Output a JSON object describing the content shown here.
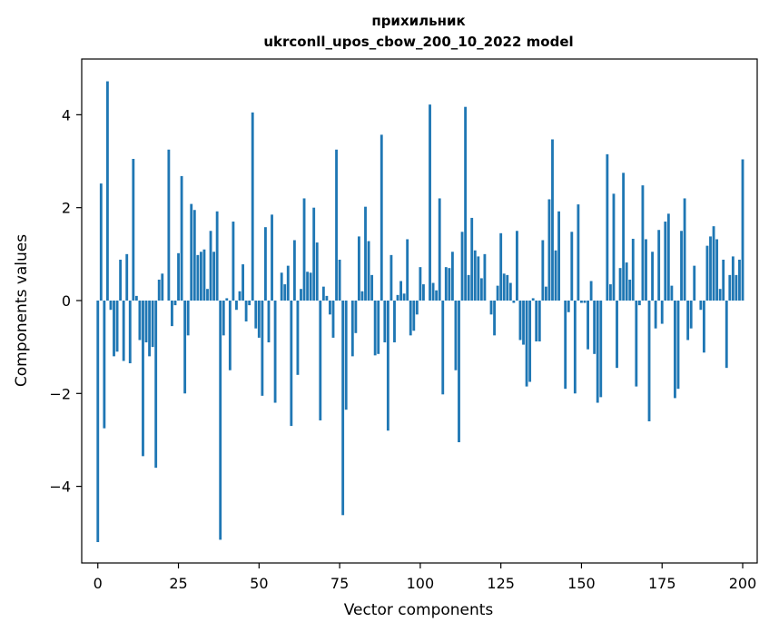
{
  "chart_data": {
    "type": "bar",
    "title": "прихильник",
    "subtitle": "ukrconll_upos_cbow_200_10_2022 model",
    "xlabel": "Vector components",
    "ylabel": "Components values",
    "xlim": [
      -5,
      204.5
    ],
    "ylim": [
      -5.65,
      5.2
    ],
    "xticks": [
      0,
      25,
      50,
      75,
      100,
      125,
      150,
      175,
      200
    ],
    "xtick_labels": [
      "0",
      "25",
      "50",
      "75",
      "100",
      "125",
      "150",
      "175",
      "200"
    ],
    "yticks": [
      -4,
      -2,
      0,
      2,
      4
    ],
    "ytick_labels": [
      "−4",
      "−2",
      "0",
      "2",
      "4"
    ],
    "grid": false,
    "bar_color": "#1f77b4",
    "series": [
      {
        "x_start": 0,
        "values": [
          -5.2,
          2.52,
          -2.75,
          4.72,
          -0.2,
          -1.2,
          -1.1,
          0.88,
          -1.3,
          1.0,
          -1.35,
          3.05,
          0.1,
          -0.85,
          -3.35,
          -0.9,
          -1.2,
          -1.0,
          -3.6,
          0.45,
          0.58,
          0.0,
          3.25,
          -0.55,
          -0.1,
          1.02,
          2.68,
          -2.0,
          -0.75,
          2.08,
          1.95,
          0.98,
          1.05,
          1.1,
          0.25,
          1.5,
          1.05,
          1.92,
          -5.15,
          -0.75,
          0.05,
          -1.5,
          1.7,
          -0.2,
          0.2,
          0.78,
          -0.45,
          -0.1,
          4.05,
          -0.6,
          -0.8,
          -2.05,
          1.58,
          -0.9,
          1.85,
          -2.2,
          0.0,
          0.6,
          0.35,
          0.75,
          -2.7,
          1.3,
          -1.6,
          0.25,
          2.2,
          0.62,
          0.6,
          2.0,
          1.25,
          -2.58,
          0.3,
          0.1,
          -0.3,
          -0.8,
          3.25,
          0.88,
          -4.62,
          -2.35,
          0.0,
          -1.2,
          -0.7,
          1.38,
          0.2,
          2.02,
          1.28,
          0.55,
          -1.18,
          -1.15,
          3.57,
          -0.9,
          -2.8,
          0.98,
          -0.9,
          0.12,
          0.42,
          0.15,
          1.32,
          -0.75,
          -0.65,
          -0.3,
          0.72,
          0.35,
          0.0,
          4.22,
          0.38,
          0.22,
          2.2,
          -2.02,
          0.72,
          0.7,
          1.05,
          -1.5,
          -3.05,
          1.48,
          4.17,
          0.55,
          1.78,
          1.08,
          0.95,
          0.48,
          1.0,
          0.0,
          -0.3,
          -0.75,
          0.32,
          1.45,
          0.58,
          0.55,
          0.38,
          -0.05,
          1.5,
          -0.85,
          -0.95,
          -1.85,
          -1.75,
          0.05,
          -0.88,
          -0.88,
          1.3,
          0.3,
          2.18,
          3.47,
          1.08,
          1.92,
          0.0,
          -1.9,
          -0.25,
          1.48,
          -2.0,
          2.07,
          -0.05,
          -0.05,
          -1.05,
          0.42,
          -1.15,
          -2.2,
          -2.08,
          0.0,
          3.15,
          0.35,
          2.3,
          -1.45,
          0.7,
          2.75,
          0.82,
          0.45,
          1.33,
          -1.85,
          -0.1,
          2.48,
          1.32,
          -2.6,
          1.05,
          -0.6,
          1.52,
          -0.5,
          1.7,
          1.87,
          0.32,
          -2.1,
          -1.9,
          1.5,
          2.2,
          -0.85,
          -0.6,
          0.75,
          0.0,
          -0.2,
          -1.12,
          1.18,
          1.38,
          1.6,
          1.32,
          0.25,
          0.88,
          -1.45,
          0.55,
          0.95,
          0.55,
          0.88,
          3.04
        ]
      }
    ]
  }
}
